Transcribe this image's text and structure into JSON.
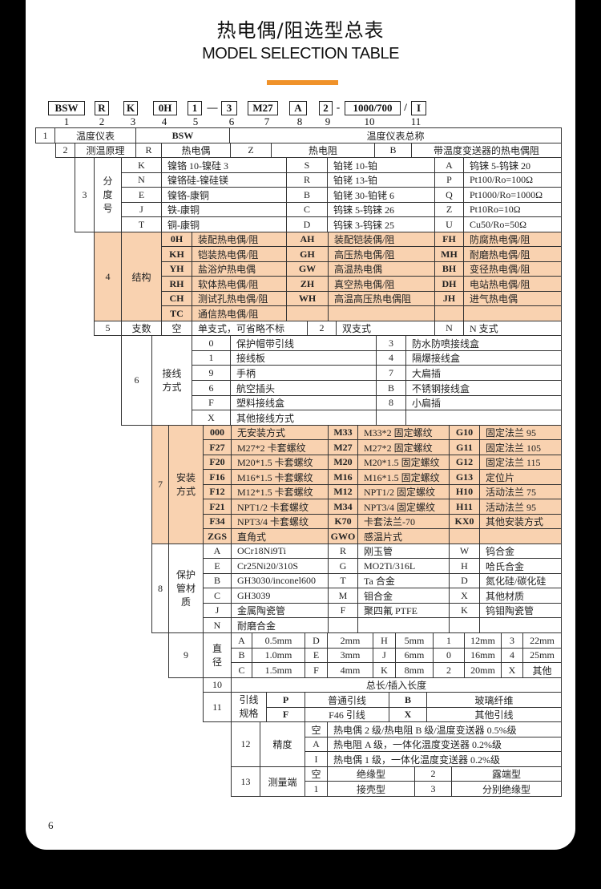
{
  "header": {
    "title": "热电偶/阻选型总表",
    "subtitle": "MODEL SELECTION TABLE"
  },
  "colors": {
    "accent": "#f0922a",
    "highlight_fill": "#f9d2b0",
    "background": "#000000",
    "card": "#ffffff"
  },
  "code": {
    "parts": [
      "BSW",
      "R",
      "K",
      "0H",
      "1",
      "—",
      "3",
      "M27",
      "A",
      "2",
      "-",
      "1000/700",
      "/",
      "I"
    ],
    "positions": [
      "1",
      "2",
      "3",
      "4",
      "5",
      "6",
      "7",
      "8",
      "9",
      "10",
      "11"
    ]
  },
  "s1": {
    "num": "1",
    "label": "温度仪表",
    "code": "BSW",
    "desc": "温度仪表总称"
  },
  "s2": {
    "num": "2",
    "label": "测温原理",
    "row": [
      "R",
      "热电偶",
      "Z",
      "热电阻",
      "B",
      "带温度变送器的热电偶阻"
    ]
  },
  "s3": {
    "num": "3",
    "label": "分度号",
    "rows": [
      [
        "K",
        "镍铬 10-镍硅 3",
        "S",
        "铂铑 10-铂",
        "A",
        "钨铼 5-钨铼 20"
      ],
      [
        "N",
        "镍铬硅-镍硅镁",
        "R",
        "铂铑 13-铂",
        "P",
        "Pt100/Ro=100Ω"
      ],
      [
        "E",
        "镍铬-康铜",
        "B",
        "铂铑 30-铂铑 6",
        "Q",
        "Pt1000/Ro=1000Ω"
      ],
      [
        "J",
        "铁-康铜",
        "C",
        "钨铼 5-钨铼 26",
        "Z",
        "Pt10Ro=10Ω"
      ],
      [
        "T",
        "铜-康铜",
        "D",
        "钨铼 3-钨铼 25",
        "U",
        "Cu50/Ro=50Ω"
      ]
    ]
  },
  "s4": {
    "num": "4",
    "label": "结构",
    "rows": [
      [
        "0H",
        "装配热电偶/阻",
        "AH",
        "装配铠装偶/阻",
        "FH",
        "防腐热电偶/阻"
      ],
      [
        "KH",
        "铠装热电偶/阻",
        "GH",
        "高压热电偶/阻",
        "MH",
        "耐磨热电偶/阻"
      ],
      [
        "YH",
        "盐浴炉热电偶",
        "GW",
        "高温热电偶",
        "BH",
        "变径热电偶/阻"
      ],
      [
        "RH",
        "软体热电偶/阻",
        "ZH",
        "真空热电偶/阻",
        "DH",
        "电站热电偶/阻"
      ],
      [
        "CH",
        "测试孔热电偶/阻",
        "WH",
        "高温高压热电偶阻",
        "JH",
        "进气热电偶"
      ],
      [
        "TC",
        "通信热电偶/阻",
        "",
        "",
        "",
        ""
      ]
    ]
  },
  "s5": {
    "num": "5",
    "label": "支数",
    "row": [
      "空",
      "单支式，可省略不标",
      "2",
      "双支式",
      "N",
      "N 支式"
    ]
  },
  "s6": {
    "num": "6",
    "label": "接线方式",
    "rows": [
      [
        "0",
        "保护帽带引线",
        "3",
        "防水防喷接线盒"
      ],
      [
        "1",
        "接线板",
        "4",
        "隔爆接线盒"
      ],
      [
        "9",
        "手柄",
        "7",
        "大扁插"
      ],
      [
        "6",
        "航空插头",
        "B",
        "不锈钢接线盒"
      ],
      [
        "F",
        "塑料接线盒",
        "8",
        "小扁插"
      ],
      [
        "X",
        "其他接线方式",
        "",
        ""
      ]
    ]
  },
  "s7": {
    "num": "7",
    "label": "安装方式",
    "rows": [
      [
        "000",
        "无安装方式",
        "M33",
        "M33*2 固定螺纹",
        "G10",
        "固定法兰 95"
      ],
      [
        "F27",
        "M27*2 卡套螺纹",
        "M27",
        "M27*2 固定螺纹",
        "G11",
        "固定法兰 105"
      ],
      [
        "F20",
        "M20*1.5 卡套螺纹",
        "M20",
        "M20*1.5 固定螺纹",
        "G12",
        "固定法兰 115"
      ],
      [
        "F16",
        "M16*1.5 卡套螺纹",
        "M16",
        "M16*1.5 固定螺纹",
        "G13",
        "定位片"
      ],
      [
        "F12",
        "M12*1.5 卡套螺纹",
        "M12",
        "NPT1/2 固定螺纹",
        "H10",
        "活动法兰 75"
      ],
      [
        "F21",
        "NPT1/2 卡套螺纹",
        "M34",
        "NPT3/4 固定螺纹",
        "H11",
        "活动法兰 95"
      ],
      [
        "F34",
        "NPT3/4 卡套螺纹",
        "K70",
        "卡套法兰-70",
        "KX0",
        "其他安装方式"
      ],
      [
        "ZGS",
        "直角式",
        "GWO",
        "感温片式",
        "",
        ""
      ]
    ]
  },
  "s8": {
    "num": "8",
    "label": "保护管材质",
    "rows": [
      [
        "A",
        "OCr18Ni9Ti",
        "R",
        "刚玉管",
        "W",
        "钨合金"
      ],
      [
        "E",
        "Cr25Ni20/310S",
        "G",
        "MO2Ti/316L",
        "H",
        "哈氏合金"
      ],
      [
        "B",
        "GH3030/inconel600",
        "T",
        "Ta 合金",
        "D",
        "氮化硅/碳化硅"
      ],
      [
        "C",
        "GH3039",
        "M",
        "钼合金",
        "X",
        "其他材质"
      ],
      [
        "J",
        "金属陶瓷管",
        "F",
        "聚四氟 PTFE",
        "K",
        "钨钼陶瓷管"
      ],
      [
        "N",
        "耐磨合金",
        "",
        "",
        "",
        ""
      ]
    ]
  },
  "s9": {
    "num": "9",
    "label": "直径",
    "rows": [
      [
        "A",
        "0.5mm",
        "D",
        "2mm",
        "H",
        "5mm",
        "1",
        "12mm",
        "3",
        "22mm"
      ],
      [
        "B",
        "1.0mm",
        "E",
        "3mm",
        "J",
        "6mm",
        "0",
        "16mm",
        "4",
        "25mm"
      ],
      [
        "C",
        "1.5mm",
        "F",
        "4mm",
        "K",
        "8mm",
        "2",
        "20mm",
        "X",
        "其他"
      ]
    ]
  },
  "s10": {
    "num": "10",
    "desc": "总长/插入长度"
  },
  "s11": {
    "num": "11",
    "label": "引线规格",
    "rows": [
      [
        "P",
        "普通引线",
        "B",
        "玻璃纤维"
      ],
      [
        "F",
        "F46 引线",
        "X",
        "其他引线"
      ]
    ]
  },
  "s12": {
    "num": "12",
    "label": "精度",
    "rows": [
      [
        "空",
        "热电偶 2 级/热电阻 B 级/温度变送器 0.5%级"
      ],
      [
        "A",
        "热电阻 A 级，一体化温度变送器 0.2%级"
      ],
      [
        "I",
        "热电偶 1 级，一体化温度变送器 0.2%级"
      ]
    ]
  },
  "s13": {
    "num": "13",
    "label": "测量端",
    "rows": [
      [
        "空",
        "绝缘型",
        "2",
        "露端型"
      ],
      [
        "1",
        "接壳型",
        "3",
        "分别绝缘型"
      ]
    ]
  },
  "footer": {
    "page_number": "6"
  }
}
